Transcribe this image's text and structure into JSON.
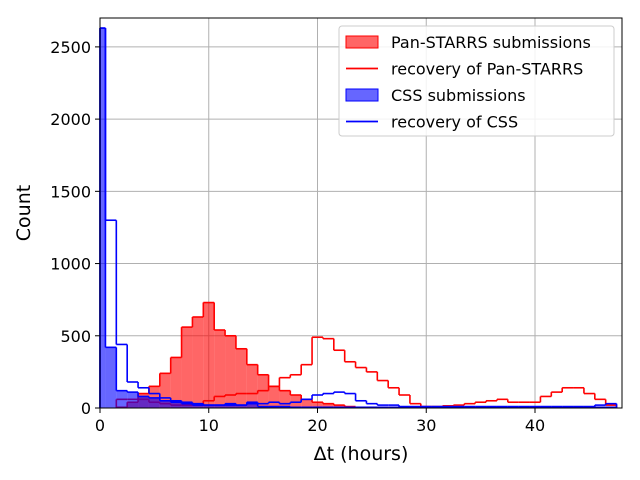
{
  "chart_data": {
    "type": "histogram",
    "xlabel": "Δt (hours)",
    "ylabel": "Count",
    "xlim": [
      0,
      48
    ],
    "ylim": [
      0,
      2700
    ],
    "xticks": [
      0,
      10,
      20,
      30,
      40
    ],
    "yticks": [
      0,
      500,
      1000,
      1500,
      2000,
      2500
    ],
    "grid": true,
    "legend_position": "top-right",
    "bin_width": 1,
    "series": [
      {
        "name": "Pan-STARRS submissions",
        "style": "filled",
        "color": "#ff0000",
        "bin_starts": [
          1.5,
          2.5,
          3.5,
          4.5,
          5.5,
          6.5,
          7.5,
          8.5,
          9.5,
          10.5,
          11.5,
          12.5,
          13.5,
          14.5,
          15.5,
          16.5,
          17.5,
          18.5,
          19.5,
          20.5,
          21.5,
          22.5,
          23.5,
          24.5,
          25.5,
          26.5,
          27.5,
          28.5,
          29.5,
          30.5,
          31.5,
          32.5,
          33.5,
          34.5,
          35.5,
          36.5,
          37.5,
          38.5,
          39.5,
          40.5,
          41.5,
          42.5,
          43.5,
          44.5,
          45.5,
          46.5
        ],
        "values": [
          5,
          40,
          100,
          150,
          240,
          350,
          560,
          630,
          730,
          540,
          500,
          410,
          300,
          230,
          150,
          120,
          90,
          60,
          40,
          30,
          20,
          10,
          5,
          5,
          5,
          5,
          5,
          5,
          5,
          5,
          5,
          5,
          5,
          5,
          5,
          5,
          5,
          5,
          5,
          5,
          5,
          5,
          5,
          5,
          5,
          5
        ]
      },
      {
        "name": "recovery of Pan-STARRS",
        "style": "step",
        "color": "#ff0000",
        "bin_starts": [
          1.5,
          2.5,
          3.5,
          4.5,
          5.5,
          6.5,
          7.5,
          8.5,
          9.5,
          10.5,
          11.5,
          12.5,
          13.5,
          14.5,
          15.5,
          16.5,
          17.5,
          18.5,
          19.5,
          20.5,
          21.5,
          22.5,
          23.5,
          24.5,
          25.5,
          26.5,
          27.5,
          28.5,
          29.5,
          30.5,
          31.5,
          32.5,
          33.5,
          34.5,
          35.5,
          36.5,
          37.5,
          38.5,
          39.5,
          40.5,
          41.5,
          42.5,
          43.5,
          44.5,
          45.5,
          46.5
        ],
        "values": [
          60,
          60,
          60,
          40,
          30,
          20,
          20,
          20,
          50,
          80,
          90,
          100,
          100,
          120,
          150,
          210,
          230,
          300,
          490,
          480,
          400,
          320,
          280,
          250,
          190,
          140,
          90,
          30,
          10,
          10,
          15,
          20,
          30,
          40,
          50,
          60,
          40,
          40,
          40,
          80,
          110,
          140,
          140,
          100,
          60,
          20
        ]
      },
      {
        "name": "CSS submissions",
        "style": "filled",
        "color": "#0000ff",
        "bin_starts": [
          0,
          0.5,
          1.5,
          2.5,
          3.5,
          4.5,
          5.5,
          6.5,
          7.5,
          8.5,
          9.5,
          10.5,
          11.5,
          12.5,
          13.5,
          14.5,
          15.5,
          16.5,
          17.5,
          18.5,
          19.5,
          20.5,
          21.5,
          22.5,
          23.5,
          24.5,
          25.5,
          26.5,
          27.5,
          28.5,
          29.5,
          30.5,
          31.5,
          32.5,
          33.5,
          34.5,
          35.5,
          36.5,
          37.5,
          38.5,
          39.5,
          40.5,
          41.5,
          42.5,
          43.5,
          44.5,
          45.5,
          46.5
        ],
        "values": [
          2630,
          420,
          120,
          110,
          80,
          70,
          50,
          40,
          30,
          20,
          20,
          20,
          30,
          20,
          30,
          10,
          10,
          10,
          5,
          5,
          5,
          5,
          5,
          5,
          5,
          5,
          5,
          5,
          5,
          5,
          5,
          5,
          5,
          5,
          5,
          5,
          5,
          5,
          5,
          5,
          5,
          5,
          5,
          5,
          5,
          5,
          5,
          5
        ]
      },
      {
        "name": "recovery of CSS",
        "style": "step",
        "color": "#0000ff",
        "bin_starts": [
          0,
          0.5,
          1.5,
          2.5,
          3.5,
          4.5,
          5.5,
          6.5,
          7.5,
          8.5,
          9.5,
          10.5,
          11.5,
          12.5,
          13.5,
          14.5,
          15.5,
          16.5,
          17.5,
          18.5,
          19.5,
          20.5,
          21.5,
          22.5,
          23.5,
          24.5,
          25.5,
          26.5,
          27.5,
          28.5,
          29.5,
          30.5,
          31.5,
          32.5,
          33.5,
          34.5,
          35.5,
          36.5,
          37.5,
          38.5,
          39.5,
          40.5,
          41.5,
          42.5,
          43.5,
          44.5,
          45.5,
          46.5
        ],
        "values": [
          2630,
          1300,
          440,
          180,
          140,
          100,
          70,
          50,
          40,
          30,
          20,
          20,
          20,
          20,
          40,
          30,
          40,
          30,
          40,
          60,
          90,
          100,
          110,
          100,
          50,
          30,
          20,
          20,
          10,
          10,
          10,
          10,
          10,
          10,
          10,
          10,
          10,
          10,
          10,
          10,
          10,
          10,
          10,
          10,
          10,
          10,
          20,
          30
        ]
      }
    ]
  }
}
